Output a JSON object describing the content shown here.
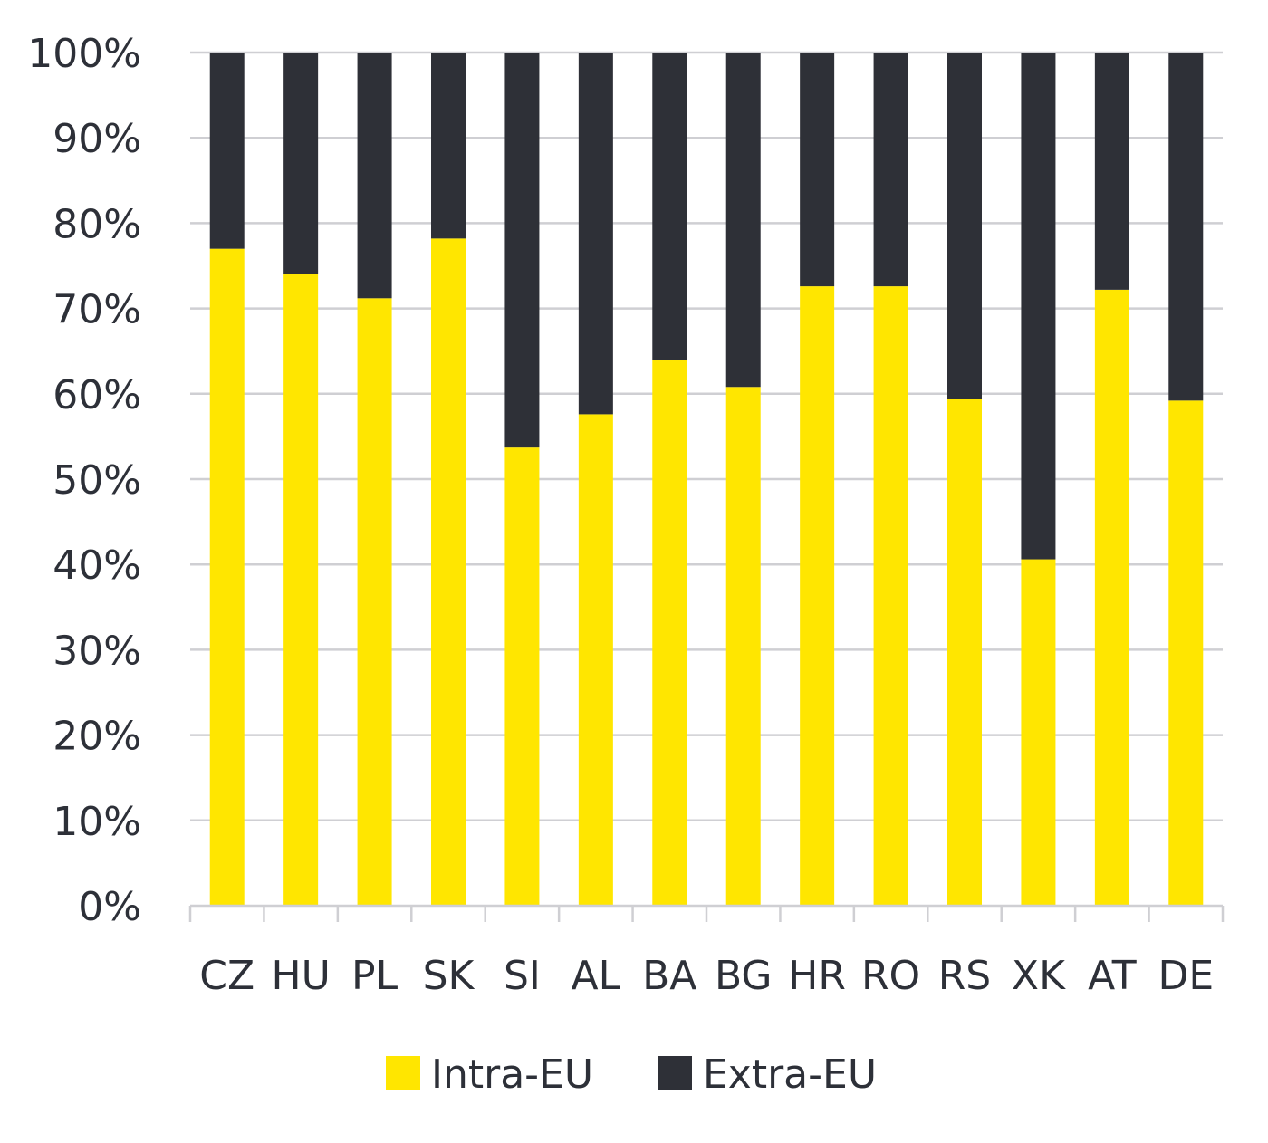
{
  "chart_data": {
    "type": "bar",
    "stacked": true,
    "categories": [
      "CZ",
      "HU",
      "PL",
      "SK",
      "SI",
      "AL",
      "BA",
      "BG",
      "HR",
      "RO",
      "RS",
      "XK",
      "AT",
      "DE"
    ],
    "series": [
      {
        "name": "Intra-EU",
        "color": "#ffe600",
        "values": [
          77,
          74,
          71.2,
          78.2,
          53.7,
          57.6,
          64,
          60.8,
          72.6,
          72.6,
          59.4,
          40.6,
          72.2,
          59.2
        ]
      },
      {
        "name": "Extra-EU",
        "color": "#2e3037",
        "values": [
          23,
          26,
          28.8,
          21.8,
          46.3,
          42.4,
          36,
          39.2,
          27.4,
          27.4,
          40.6,
          59.4,
          27.8,
          40.8
        ]
      }
    ],
    "ylim": [
      0,
      100
    ],
    "y_ticks": [
      "0%",
      "10%",
      "20%",
      "30%",
      "40%",
      "50%",
      "60%",
      "70%",
      "80%",
      "90%",
      "100%"
    ],
    "grid": true,
    "legend_position": "bottom"
  }
}
